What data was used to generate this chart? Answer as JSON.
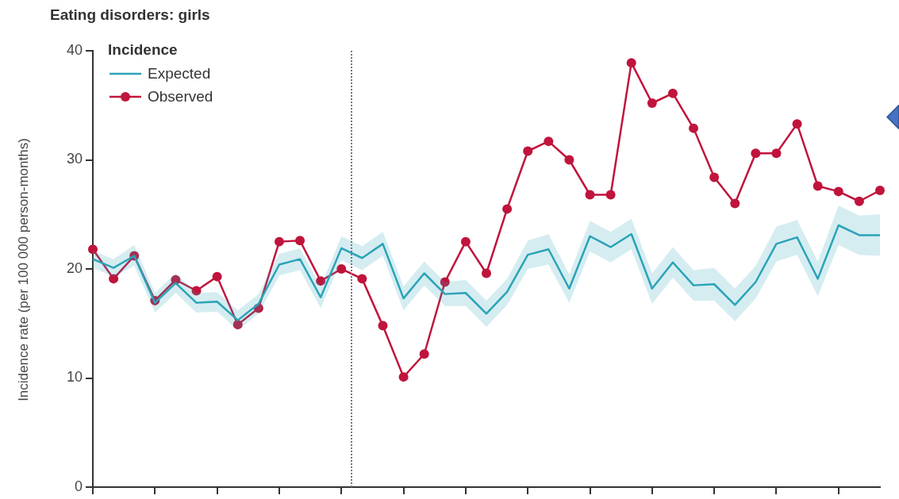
{
  "chart_data": {
    "type": "line",
    "title": "Eating disorders: girls",
    "ylabel": "Incidence rate (per 100 000 person-months)",
    "legend_title": "Incidence",
    "categories": [
      null,
      null,
      null,
      null,
      null,
      null,
      null,
      null,
      null,
      null,
      null,
      null,
      null,
      null,
      null,
      null,
      null,
      null,
      null,
      null,
      null,
      null,
      null,
      null,
      null,
      null,
      null,
      null,
      null,
      null,
      null,
      null,
      null,
      null,
      null,
      null,
      null,
      null,
      null
    ],
    "series": [
      {
        "name": "Expected",
        "color": "#2ba3b8",
        "marker": "none",
        "values": [
          20.9,
          20.1,
          21.2,
          16.9,
          18.7,
          16.9,
          17.0,
          15.3,
          16.8,
          20.4,
          20.9,
          17.4,
          21.9,
          21.0,
          22.3,
          17.3,
          19.6,
          17.7,
          17.8,
          15.9,
          17.9,
          21.3,
          21.8,
          18.2,
          23.0,
          22.0,
          23.2,
          18.2,
          20.6,
          18.5,
          18.6,
          16.7,
          18.8,
          22.3,
          22.9,
          19.1,
          24.0,
          23.1,
          23.1
        ],
        "lower": [
          20.1,
          19.3,
          20.3,
          16.0,
          17.8,
          16.0,
          16.1,
          14.4,
          15.9,
          19.4,
          19.9,
          16.4,
          20.8,
          19.9,
          21.2,
          16.2,
          18.5,
          16.6,
          16.6,
          14.7,
          16.7,
          20.0,
          20.4,
          16.9,
          21.6,
          20.6,
          21.8,
          16.8,
          19.2,
          17.1,
          17.1,
          15.2,
          17.3,
          20.7,
          21.3,
          17.5,
          22.2,
          21.3,
          21.2
        ],
        "upper": [
          21.7,
          20.9,
          22.2,
          17.8,
          19.6,
          17.8,
          17.9,
          16.2,
          17.7,
          21.4,
          21.9,
          18.4,
          23.0,
          22.1,
          23.4,
          18.4,
          20.7,
          18.8,
          19.0,
          17.1,
          19.1,
          22.6,
          23.2,
          19.5,
          24.4,
          23.4,
          24.6,
          19.6,
          22.0,
          19.9,
          20.1,
          18.2,
          20.3,
          23.9,
          24.5,
          20.7,
          25.8,
          24.9,
          25.0
        ]
      },
      {
        "name": "Observed",
        "color": "#c0143c",
        "marker": "circle",
        "values": [
          21.8,
          19.1,
          21.2,
          17.1,
          19.0,
          18.0,
          19.3,
          14.9,
          16.4,
          22.5,
          22.6,
          18.9,
          20.0,
          19.1,
          14.8,
          10.1,
          12.2,
          18.8,
          22.5,
          19.6,
          25.5,
          30.8,
          31.7,
          30.0,
          26.8,
          26.8,
          38.9,
          35.2,
          36.1,
          32.9,
          28.4,
          26.0,
          30.6,
          30.6,
          33.3,
          27.6,
          27.1,
          26.2,
          27.2
        ]
      }
    ],
    "ylim": [
      0,
      40
    ],
    "yticks": [
      0,
      10,
      20,
      30,
      40
    ],
    "grid": false,
    "legend": "top left",
    "line_style": "solid"
  }
}
